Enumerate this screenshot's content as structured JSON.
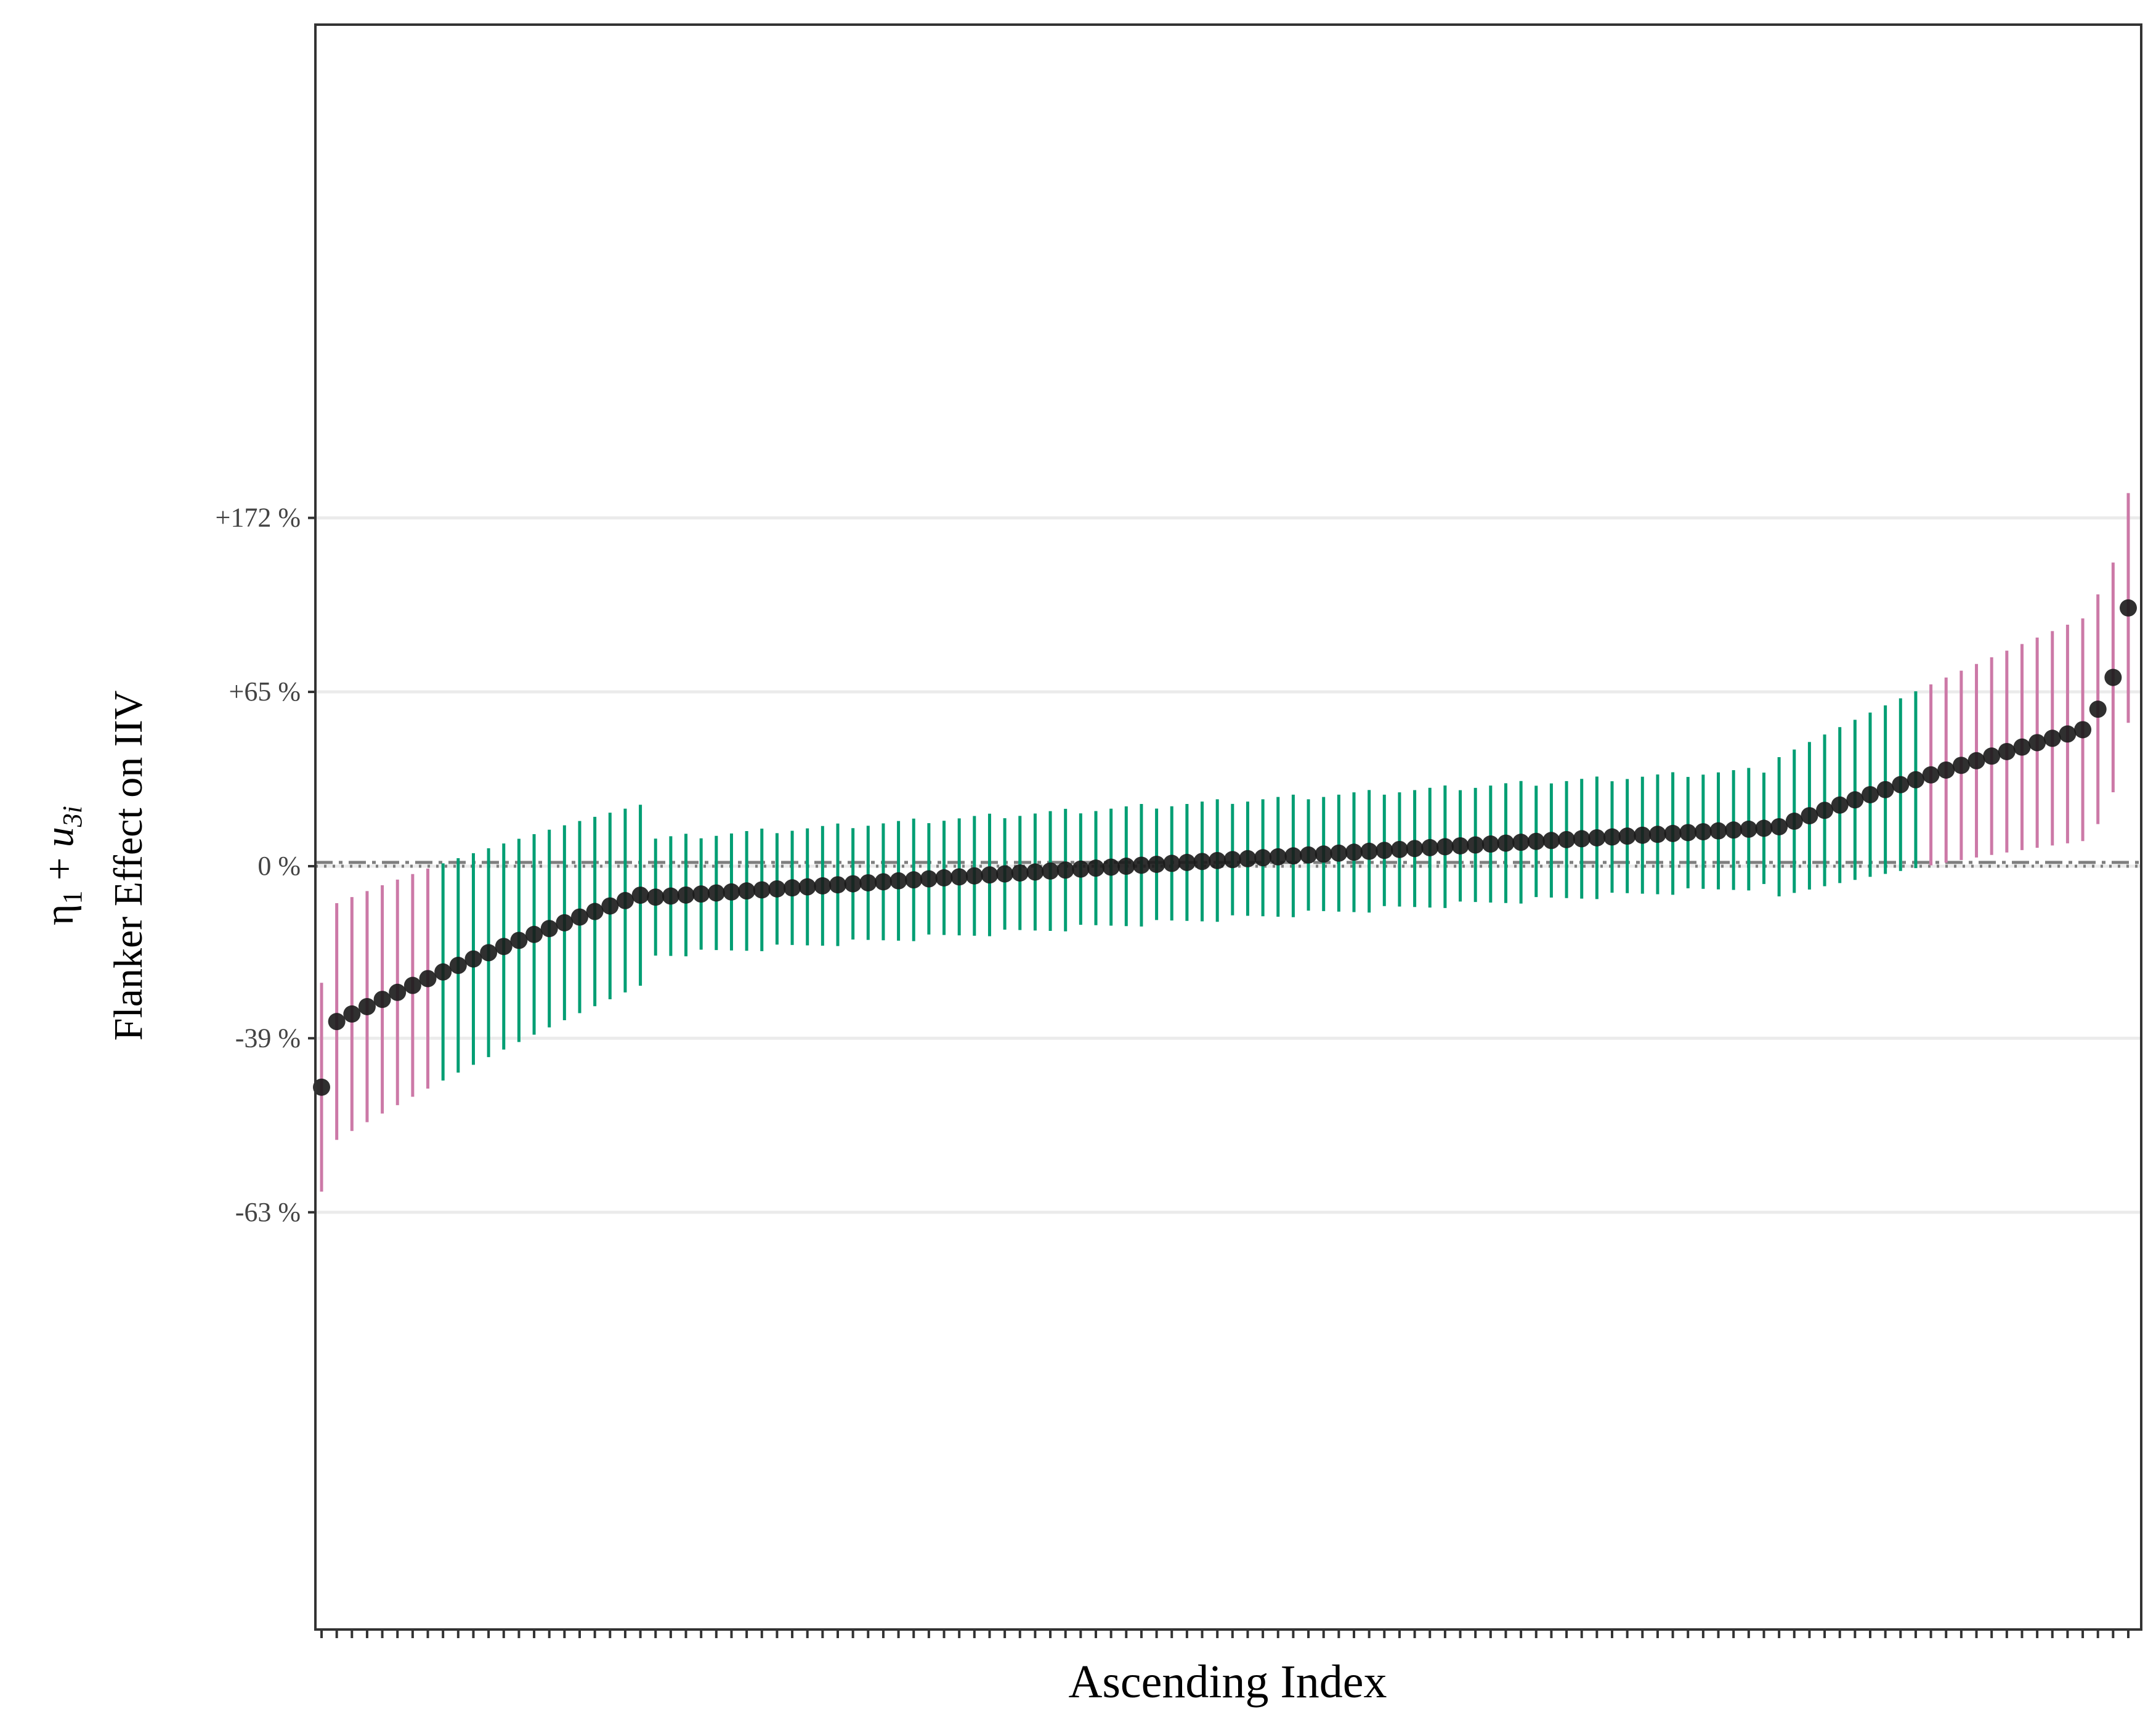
{
  "chart_data": {
    "type": "scatter",
    "title": "",
    "xlabel": "Ascending Index",
    "ylabel": "Flanker Effect on IIV",
    "ylabel_math": {
      "eta": "η",
      "eta_sub": "1",
      "plus": " + ",
      "u": "u",
      "u_sub": "3i"
    },
    "y_scale": "log",
    "ylim": [
      -0.655,
      1.6
    ],
    "y_ticks": [
      {
        "value": -0.63,
        "label": "-63 %"
      },
      {
        "value": -0.39,
        "label": "-39 %"
      },
      {
        "value": 0,
        "label": "0 %"
      },
      {
        "value": 0.65,
        "label": "+65 %"
      },
      {
        "value": 1.72,
        "label": "+172 %"
      }
    ],
    "reference_lines": [
      {
        "style": "dotdash",
        "value": 0.011
      },
      {
        "style": "dotted",
        "value": 0
      }
    ],
    "grid": "horizontal-major",
    "colors": {
      "credible": "#CC79A7",
      "not_credible": "#009E73",
      "point": "#1a1a1a",
      "reference": "#7f7f7f",
      "grid": "#ebebeb",
      "frame": "#333333"
    },
    "n_points": 120,
    "summary": {
      "min_estimate": -0.47,
      "max_estimate": 1.1,
      "first_index_to_cross_zero": 22,
      "last_index_to_cross_zero": 95
    }
  }
}
